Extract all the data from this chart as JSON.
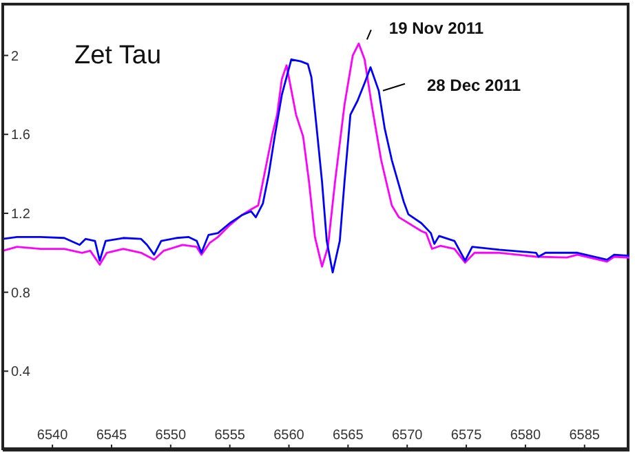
{
  "chart_data": {
    "type": "line",
    "title": "Zet Tau",
    "xlim": [
      6535.8,
      6588.8
    ],
    "ylim": [
      0,
      2.26
    ],
    "xticks": [
      6540,
      6545,
      6550,
      6555,
      6560,
      6565,
      6570,
      6575,
      6580,
      6585
    ],
    "yticks": [
      0.4,
      0.8,
      1.2,
      1.6,
      2
    ],
    "marker": "none",
    "line_style": "solid",
    "series": [
      {
        "name": "19 Nov 2011",
        "color": "#ff00ff",
        "x": [
          6535.8,
          6537,
          6539,
          6541,
          6542.5,
          6543.2,
          6544,
          6544.6,
          6546,
          6547.5,
          6548.6,
          6549.4,
          6551,
          6552.2,
          6552.6,
          6553.3,
          6554,
          6555,
          6556,
          6556.8,
          6557.4,
          6558.1,
          6558.6,
          6559,
          6559.4,
          6559.8,
          6560.6,
          6561.2,
          6561.7,
          6562.2,
          6562.8,
          6563.3,
          6563.9,
          6564.7,
          6565.4,
          6565.9,
          6566.4,
          6567,
          6567.8,
          6568.7,
          6569.3,
          6571.2,
          6571.6,
          6572.1,
          6572.8,
          6574,
          6574.9,
          6575.7,
          6577.8,
          6580.9,
          6583.5,
          6584.4,
          6586.9,
          6587.5,
          6588.8
        ],
        "values": [
          1.01,
          1.03,
          1.02,
          1.02,
          1.0,
          1.01,
          0.94,
          1.0,
          1.02,
          1.0,
          0.965,
          1.01,
          1.04,
          1.03,
          0.99,
          1.05,
          1.08,
          1.14,
          1.19,
          1.22,
          1.24,
          1.45,
          1.6,
          1.7,
          1.88,
          1.95,
          1.7,
          1.59,
          1.36,
          1.08,
          0.93,
          1.03,
          1.36,
          1.75,
          2.0,
          2.06,
          1.98,
          1.75,
          1.47,
          1.24,
          1.18,
          1.11,
          1.1,
          1.02,
          1.035,
          1.02,
          0.95,
          1.0,
          1.0,
          0.98,
          0.976,
          0.99,
          0.955,
          0.98,
          0.975
        ]
      },
      {
        "name": "28 Dec 2011",
        "color": "#0000ff",
        "x": [
          6535.8,
          6537,
          6539,
          6541,
          6542.3,
          6542.8,
          6543.6,
          6544,
          6544.5,
          6546,
          6547.5,
          6548,
          6548.6,
          6549.2,
          6550.5,
          6551.5,
          6552.2,
          6552.6,
          6553.2,
          6554,
          6555,
          6556,
          6556.8,
          6557.2,
          6557.8,
          6558.3,
          6558.8,
          6559.4,
          6560.2,
          6561,
          6561.6,
          6561.9,
          6562.3,
          6562.8,
          6563.2,
          6563.7,
          6564.3,
          6564.7,
          6565.2,
          6565.8,
          6566.4,
          6566.9,
          6567.6,
          6568.1,
          6568.7,
          6569.7,
          6570.1,
          6571.2,
          6572,
          6572.3,
          6572.7,
          6574,
          6574.9,
          6575.5,
          6577.8,
          6580.9,
          6581.1,
          6581.7,
          6584.4,
          6586.9,
          6587.5,
          6588.8
        ],
        "values": [
          1.07,
          1.08,
          1.08,
          1.075,
          1.04,
          1.07,
          1.06,
          0.96,
          1.06,
          1.075,
          1.07,
          1.04,
          0.99,
          1.06,
          1.075,
          1.08,
          1.06,
          1.0,
          1.09,
          1.1,
          1.15,
          1.19,
          1.21,
          1.18,
          1.25,
          1.4,
          1.59,
          1.8,
          1.98,
          1.97,
          1.956,
          1.89,
          1.66,
          1.36,
          1.06,
          0.9,
          1.06,
          1.36,
          1.7,
          1.77,
          1.86,
          1.94,
          1.82,
          1.63,
          1.47,
          1.26,
          1.195,
          1.15,
          1.1,
          1.045,
          1.085,
          1.06,
          0.96,
          1.03,
          1.015,
          1.0,
          0.98,
          1.0,
          1.0,
          0.965,
          0.99,
          0.985
        ]
      }
    ]
  }
}
